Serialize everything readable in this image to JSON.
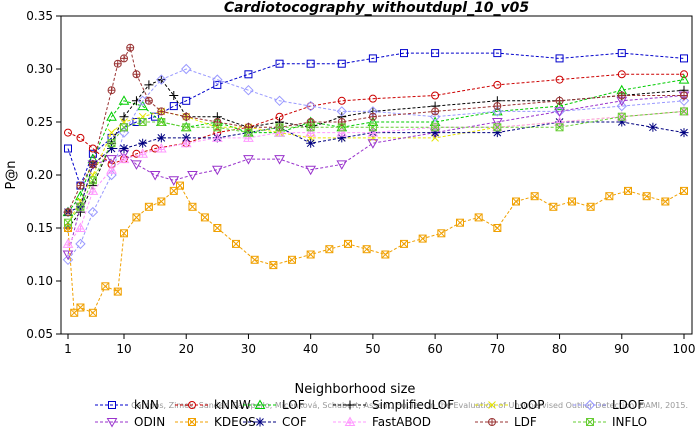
{
  "chart_data": {
    "type": "line",
    "title": "Cardiotocography_withoutdupl_10_v05",
    "xlabel": "Neighborhood size",
    "ylabel": "P@n",
    "xlim": [
      1,
      100
    ],
    "ylim": [
      0.05,
      0.35
    ],
    "x_ticks": [
      1,
      10,
      20,
      30,
      40,
      50,
      60,
      70,
      80,
      90,
      100
    ],
    "y_ticks": [
      0.05,
      0.1,
      0.15,
      0.2,
      0.25,
      0.3,
      0.35
    ],
    "x_tick_labels": [
      "1",
      "10",
      "20",
      "30",
      "40",
      "50",
      "60",
      "70",
      "80",
      "90",
      "100"
    ],
    "y_tick_labels": [
      "0.05",
      "0.10",
      "0.15",
      "0.20",
      "0.25",
      "0.30",
      "0.35"
    ],
    "grid": false,
    "legend_position": "bottom",
    "watermark": "Campos, Zimek, Sander, Campello, Micenková, Schubert, Assent, Houle: On the Evaluation of Unsupervised Outlier Detection. DAMI, 2015.",
    "series": [
      {
        "name": "kNN",
        "color": "#0000cc",
        "marker": "square",
        "x": [
          1,
          3,
          5,
          8,
          10,
          12,
          15,
          18,
          20,
          25,
          30,
          35,
          40,
          45,
          50,
          55,
          60,
          70,
          80,
          90,
          100
        ],
        "values": [
          0.225,
          0.19,
          0.22,
          0.235,
          0.245,
          0.25,
          0.255,
          0.265,
          0.27,
          0.285,
          0.295,
          0.305,
          0.305,
          0.305,
          0.31,
          0.315,
          0.315,
          0.315,
          0.31,
          0.315,
          0.31
        ]
      },
      {
        "name": "kNNW",
        "color": "#cc0000",
        "marker": "circle",
        "x": [
          1,
          3,
          5,
          8,
          10,
          12,
          15,
          20,
          25,
          30,
          35,
          40,
          45,
          50,
          60,
          70,
          80,
          90,
          100
        ],
        "values": [
          0.24,
          0.235,
          0.225,
          0.21,
          0.215,
          0.22,
          0.225,
          0.23,
          0.24,
          0.245,
          0.255,
          0.265,
          0.27,
          0.272,
          0.275,
          0.285,
          0.29,
          0.295,
          0.295
        ]
      },
      {
        "name": "LOF",
        "color": "#00cc00",
        "marker": "triangle-up",
        "x": [
          1,
          3,
          5,
          8,
          10,
          13,
          16,
          20,
          25,
          30,
          35,
          40,
          45,
          50,
          60,
          70,
          80,
          90,
          100
        ],
        "values": [
          0.165,
          0.18,
          0.215,
          0.255,
          0.27,
          0.265,
          0.25,
          0.245,
          0.25,
          0.24,
          0.24,
          0.25,
          0.245,
          0.25,
          0.25,
          0.26,
          0.265,
          0.28,
          0.29
        ]
      },
      {
        "name": "SimplifiedLOF",
        "color": "#000000",
        "marker": "plus",
        "x": [
          1,
          3,
          5,
          8,
          10,
          12,
          14,
          16,
          18,
          20,
          25,
          30,
          35,
          40,
          45,
          50,
          60,
          70,
          80,
          90,
          100
        ],
        "values": [
          0.15,
          0.165,
          0.19,
          0.23,
          0.255,
          0.27,
          0.285,
          0.29,
          0.275,
          0.255,
          0.255,
          0.245,
          0.25,
          0.245,
          0.255,
          0.26,
          0.265,
          0.27,
          0.27,
          0.275,
          0.28
        ]
      },
      {
        "name": "LoOP",
        "color": "#e6e600",
        "marker": "x",
        "x": [
          1,
          3,
          5,
          8,
          10,
          13,
          16,
          20,
          25,
          30,
          35,
          40,
          45,
          50,
          60,
          70,
          80,
          90,
          100
        ],
        "values": [
          0.155,
          0.175,
          0.2,
          0.24,
          0.25,
          0.255,
          0.26,
          0.255,
          0.245,
          0.245,
          0.24,
          0.235,
          0.235,
          0.235,
          0.235,
          0.245,
          0.25,
          0.255,
          0.26
        ]
      },
      {
        "name": "LDOF",
        "color": "#9999ff",
        "marker": "diamond",
        "x": [
          1,
          3,
          5,
          8,
          10,
          13,
          16,
          20,
          25,
          30,
          35,
          40,
          45,
          50,
          60,
          70,
          80,
          90,
          100
        ],
        "values": [
          0.12,
          0.135,
          0.165,
          0.2,
          0.24,
          0.27,
          0.29,
          0.3,
          0.29,
          0.28,
          0.27,
          0.265,
          0.26,
          0.26,
          0.255,
          0.26,
          0.26,
          0.265,
          0.27
        ]
      },
      {
        "name": "ODIN",
        "color": "#9933cc",
        "marker": "triangle-down",
        "x": [
          1,
          3,
          5,
          8,
          10,
          12,
          15,
          18,
          21,
          25,
          30,
          35,
          40,
          45,
          50,
          60,
          70,
          80,
          90,
          100
        ],
        "values": [
          0.125,
          0.17,
          0.21,
          0.215,
          0.22,
          0.21,
          0.2,
          0.195,
          0.2,
          0.205,
          0.215,
          0.215,
          0.205,
          0.21,
          0.23,
          0.24,
          0.25,
          0.26,
          0.27,
          0.275
        ]
      },
      {
        "name": "KDEOS",
        "color": "#f0a000",
        "marker": "square-x",
        "x": [
          1,
          2,
          3,
          5,
          7,
          9,
          10,
          12,
          14,
          16,
          18,
          19,
          21,
          23,
          25,
          28,
          31,
          34,
          37,
          40,
          43,
          46,
          49,
          52,
          55,
          58,
          61,
          64,
          67,
          70,
          73,
          76,
          79,
          82,
          85,
          88,
          91,
          94,
          97,
          100
        ],
        "values": [
          0.15,
          0.07,
          0.075,
          0.07,
          0.095,
          0.09,
          0.145,
          0.16,
          0.17,
          0.175,
          0.185,
          0.19,
          0.17,
          0.16,
          0.15,
          0.135,
          0.12,
          0.115,
          0.12,
          0.125,
          0.13,
          0.135,
          0.13,
          0.125,
          0.135,
          0.14,
          0.145,
          0.155,
          0.16,
          0.15,
          0.175,
          0.18,
          0.17,
          0.175,
          0.17,
          0.18,
          0.185,
          0.18,
          0.175,
          0.185
        ]
      },
      {
        "name": "COF",
        "color": "#000080",
        "marker": "asterisk",
        "x": [
          1,
          3,
          5,
          8,
          10,
          13,
          16,
          20,
          25,
          30,
          35,
          40,
          45,
          50,
          60,
          70,
          80,
          90,
          95,
          100
        ],
        "values": [
          0.165,
          0.17,
          0.21,
          0.225,
          0.225,
          0.23,
          0.235,
          0.235,
          0.235,
          0.24,
          0.245,
          0.23,
          0.235,
          0.24,
          0.24,
          0.24,
          0.25,
          0.25,
          0.245,
          0.24
        ]
      },
      {
        "name": "FastABOD",
        "color": "#ff99ff",
        "marker": "triangle-up-plus",
        "x": [
          1,
          3,
          5,
          8,
          10,
          13,
          16,
          20,
          25,
          30,
          35,
          40,
          45,
          50,
          60,
          70,
          80,
          90,
          100
        ],
        "values": [
          0.135,
          0.15,
          0.185,
          0.205,
          0.215,
          0.22,
          0.225,
          0.23,
          0.235,
          0.235,
          0.24,
          0.24,
          0.24,
          0.24,
          0.245,
          0.245,
          0.25,
          0.255,
          0.26
        ]
      },
      {
        "name": "LDF",
        "color": "#993333",
        "marker": "circle-plus",
        "x": [
          1,
          3,
          5,
          8,
          9,
          10,
          11,
          12,
          14,
          16,
          20,
          25,
          30,
          35,
          40,
          45,
          50,
          60,
          70,
          80,
          90,
          100
        ],
        "values": [
          0.165,
          0.19,
          0.21,
          0.28,
          0.305,
          0.31,
          0.32,
          0.295,
          0.27,
          0.26,
          0.255,
          0.25,
          0.245,
          0.245,
          0.25,
          0.25,
          0.255,
          0.26,
          0.265,
          0.27,
          0.275,
          0.275
        ]
      },
      {
        "name": "INFLO",
        "color": "#66cc33",
        "marker": "square-x",
        "x": [
          1,
          3,
          5,
          8,
          10,
          13,
          16,
          20,
          25,
          30,
          35,
          40,
          45,
          50,
          60,
          70,
          80,
          90,
          100
        ],
        "values": [
          0.155,
          0.17,
          0.195,
          0.23,
          0.245,
          0.25,
          0.25,
          0.245,
          0.245,
          0.24,
          0.245,
          0.245,
          0.245,
          0.245,
          0.245,
          0.245,
          0.245,
          0.255,
          0.26
        ]
      }
    ]
  }
}
